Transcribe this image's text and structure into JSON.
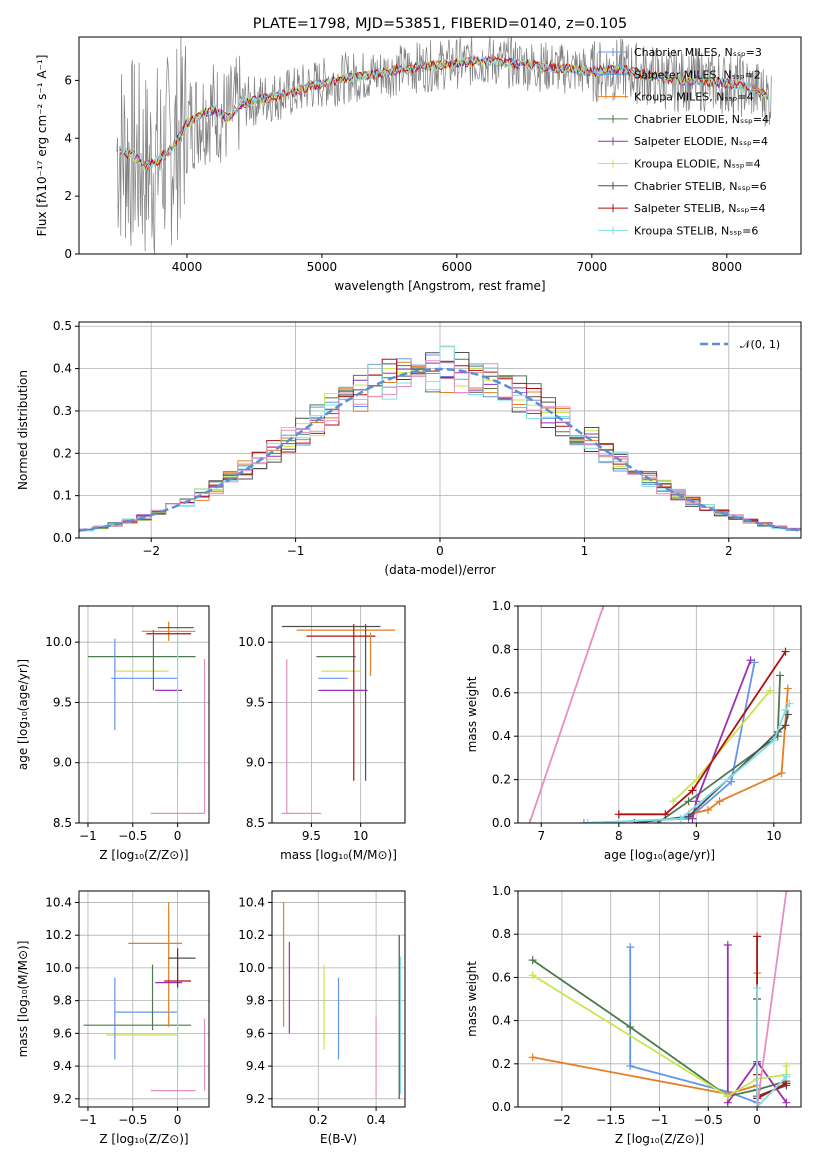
{
  "title": "PLATE=1798, MJD=53851, FIBERID=0140, z=0.105",
  "colors": {
    "chabrier_miles": "#6495ed",
    "salpeter_miles": "#4f8fe6",
    "kroupa_miles": "#e67e22",
    "chabrier_elodie": "#4d7a4d",
    "salpeter_elodie": "#9b30b0",
    "kroupa_elodie": "#c8e650",
    "chabrier_stelib": "#505050",
    "salpeter_stelib": "#b01010",
    "kroupa_stelib": "#80dfe6",
    "data_grey": "#808080",
    "pink": "#e68fbf",
    "normal_curve": "#5b8fd6"
  },
  "chart_data": [
    {
      "id": "spectrum",
      "type": "line",
      "xlabel": "wavelength [Angstrom, rest frame]",
      "ylabel": "Flux [fλ10⁻¹⁷ erg cm⁻² s⁻¹ A⁻¹]",
      "xlim": [
        3200,
        8550
      ],
      "ylim": [
        0,
        7.5
      ],
      "xticks": [
        4000,
        5000,
        6000,
        7000,
        8000
      ],
      "yticks": [
        0,
        2,
        4,
        6
      ],
      "legend": [
        "Chabrier MILES, N_SSP=3",
        "Salpeter MILES, N_SSP=2",
        "Kroupa MILES, N_SSP=4",
        "Chabrier ELODIE, N_SSP=4",
        "Salpeter ELODIE, N_SSP=4",
        "Kroupa ELODIE, N_SSP=4",
        "Chabrier STELIB, N_SSP=6",
        "Salpeter STELIB, N_SSP=4",
        "Kroupa STELIB, N_SSP=6"
      ],
      "model_x": [
        3500,
        3600,
        3700,
        3800,
        3900,
        4000,
        4100,
        4200,
        4300,
        4400,
        4500,
        4600,
        4700,
        4800,
        4900,
        5000,
        5200,
        5400,
        5600,
        5800,
        6000,
        6200,
        6400,
        6600,
        6800,
        7000,
        7200,
        7400,
        7600,
        7800,
        8000,
        8200,
        8320
      ],
      "model_y": [
        3.6,
        3.4,
        3.0,
        3.3,
        3.7,
        4.5,
        4.8,
        5.0,
        4.7,
        5.2,
        5.3,
        5.4,
        5.5,
        5.6,
        5.8,
        5.9,
        6.1,
        6.2,
        6.4,
        6.5,
        6.6,
        6.7,
        6.6,
        6.5,
        6.4,
        6.3,
        6.4,
        6.2,
        6.0,
        6.0,
        5.9,
        5.7,
        5.4
      ]
    },
    {
      "id": "residuals",
      "type": "line",
      "xlabel": "(data-model)/error",
      "ylabel": "Normed distribution",
      "xlim": [
        -2.5,
        2.5
      ],
      "ylim": [
        0,
        0.51
      ],
      "xticks": [
        -2,
        -1,
        0,
        1,
        2
      ],
      "yticks": [
        0.0,
        0.1,
        0.2,
        0.3,
        0.4,
        0.5
      ],
      "legend": [
        "𝒩(0, 1)"
      ],
      "normal": {
        "mean": 0,
        "sigma": 1
      }
    },
    {
      "id": "age_vs_Z",
      "type": "scatter",
      "xlabel": "Z [log₁₀(Z/Z⊙)]",
      "ylabel": "age  [log₁₀(age/yr)]",
      "xlim": [
        -1.1,
        0.35
      ],
      "ylim": [
        8.5,
        10.3
      ],
      "xticks": [
        -1.0,
        -0.5,
        0.0
      ],
      "yticks": [
        8.5,
        9.0,
        9.5,
        10.0
      ],
      "points": [
        {
          "x": -0.4,
          "xerr": 0.6,
          "y": 9.88,
          "yerr": 0.0,
          "c": "chabrier_elodie"
        },
        {
          "x": -0.4,
          "xerr": 0.3,
          "y": 9.76,
          "yerr": 0.0,
          "c": "kroupa_elodie"
        },
        {
          "x": -0.37,
          "xerr": 0.37,
          "y": 9.7,
          "yerr": 0.0,
          "c": "chabrier_miles"
        },
        {
          "x": -0.7,
          "xerr": 0.0,
          "y": 9.65,
          "yerr": 0.38,
          "c": "chabrier_miles"
        },
        {
          "x": -0.1,
          "xerr": 0.15,
          "y": 9.6,
          "yerr": 0.0,
          "c": "salpeter_elodie"
        },
        {
          "x": -0.1,
          "xerr": 0.3,
          "y": 10.09,
          "yerr": 0.08,
          "c": "kroupa_miles"
        },
        {
          "x": -0.02,
          "xerr": 0.2,
          "y": 10.12,
          "yerr": 0.0,
          "c": "chabrier_stelib"
        },
        {
          "x": 0.0,
          "xerr": 0.0,
          "y": 9.5,
          "yerr": 0.6,
          "c": "kroupa_stelib"
        },
        {
          "x": -0.1,
          "xerr": 0.25,
          "y": 10.07,
          "yerr": 0.0,
          "c": "salpeter_stelib"
        },
        {
          "x": 0.0,
          "xerr": 0.3,
          "y": 8.58,
          "yerr": 0.0,
          "c": "pink"
        },
        {
          "x": 0.3,
          "xerr": 0.0,
          "y": 9.22,
          "yerr": 0.64,
          "c": "pink"
        },
        {
          "x": -0.27,
          "xerr": 0.0,
          "y": 9.85,
          "yerr": 0.25,
          "c": "chabrier_elodie"
        }
      ]
    },
    {
      "id": "age_vs_mass",
      "type": "scatter",
      "xlabel": "mass [log₁₀(M/M⊙)]",
      "ylabel": "",
      "xlim": [
        9.1,
        10.45
      ],
      "ylim": [
        8.5,
        10.3
      ],
      "xticks": [
        9.5,
        10.0
      ],
      "yticks": [
        8.5,
        9.0,
        9.5,
        10.0
      ],
      "points": [
        {
          "x": 9.7,
          "xerr": 0.5,
          "y": 10.13,
          "yerr": 0.0,
          "c": "chabrier_stelib"
        },
        {
          "x": 9.85,
          "xerr": 0.5,
          "y": 10.1,
          "yerr": 0.0,
          "c": "kroupa_miles"
        },
        {
          "x": 9.8,
          "xerr": 0.35,
          "y": 10.05,
          "yerr": 0.0,
          "c": "salpeter_stelib"
        },
        {
          "x": 9.75,
          "xerr": 0.2,
          "y": 9.88,
          "yerr": 0.0,
          "c": "chabrier_elodie"
        },
        {
          "x": 9.8,
          "xerr": 0.2,
          "y": 9.76,
          "yerr": 0.0,
          "c": "kroupa_elodie"
        },
        {
          "x": 9.72,
          "xerr": 0.15,
          "y": 9.7,
          "yerr": 0.0,
          "c": "chabrier_miles"
        },
        {
          "x": 9.82,
          "xerr": 0.25,
          "y": 9.6,
          "yerr": 0.0,
          "c": "salpeter_elodie"
        },
        {
          "x": 9.4,
          "xerr": 0.2,
          "y": 8.58,
          "yerr": 0.0,
          "c": "pink"
        },
        {
          "x": 9.25,
          "xerr": 0.0,
          "y": 9.22,
          "yerr": 0.64,
          "c": "pink"
        },
        {
          "x": 9.93,
          "xerr": 0.0,
          "y": 9.5,
          "yerr": 0.65,
          "c": "salpeter_stelib"
        },
        {
          "x": 10.05,
          "xerr": 0.0,
          "y": 9.5,
          "yerr": 0.65,
          "c": "chabrier_stelib"
        },
        {
          "x": 10.1,
          "xerr": 0.0,
          "y": 9.9,
          "yerr": 0.18,
          "c": "kroupa_miles"
        }
      ]
    },
    {
      "id": "mass_weight_vs_age",
      "type": "line",
      "xlabel": "age  [log₁₀(age/yr)]",
      "ylabel": "mass weight",
      "xlim": [
        6.7,
        10.35
      ],
      "ylim": [
        0,
        1.0
      ],
      "xticks": [
        7,
        8,
        9,
        10
      ],
      "yticks": [
        0.0,
        0.2,
        0.4,
        0.6,
        0.8,
        1.0
      ],
      "series": [
        {
          "c": "pink",
          "x": [
            6.85,
            7.8
          ],
          "y": [
            0.0,
            1.0
          ]
        },
        {
          "c": "chabrier_miles",
          "x": [
            7.55,
            8.9,
            9.45,
            9.75
          ],
          "y": [
            0.0,
            0.02,
            0.19,
            0.74
          ]
        },
        {
          "c": "kroupa_miles",
          "x": [
            8.9,
            9.15,
            9.3,
            10.1,
            10.18
          ],
          "y": [
            0.04,
            0.06,
            0.1,
            0.23,
            0.62
          ]
        },
        {
          "c": "chabrier_elodie",
          "x": [
            8.5,
            8.9,
            10.05,
            10.08
          ],
          "y": [
            0.0,
            0.1,
            0.4,
            0.68
          ]
        },
        {
          "c": "salpeter_elodie",
          "x": [
            8.95,
            9.0,
            9.7
          ],
          "y": [
            0.02,
            0.1,
            0.75
          ]
        },
        {
          "c": "kroupa_elodie",
          "x": [
            8.7,
            9.0,
            9.95
          ],
          "y": [
            0.1,
            0.2,
            0.61
          ]
        },
        {
          "c": "chabrier_stelib",
          "x": [
            8.2,
            8.9,
            10.05,
            10.15,
            10.18
          ],
          "y": [
            0.0,
            0.03,
            0.42,
            0.45,
            0.5
          ]
        },
        {
          "c": "salpeter_stelib",
          "x": [
            8.0,
            8.6,
            8.95,
            10.15
          ],
          "y": [
            0.04,
            0.04,
            0.15,
            0.79
          ]
        },
        {
          "c": "kroupa_stelib",
          "x": [
            7.6,
            8.8,
            10.0,
            10.15,
            10.2
          ],
          "y": [
            0.0,
            0.02,
            0.38,
            0.52,
            0.55
          ]
        }
      ]
    },
    {
      "id": "mass_vs_Z",
      "type": "scatter",
      "xlabel": "Z [log₁₀(Z/Z⊙)]",
      "ylabel": "mass [log₁₀(M/M⊙)]",
      "xlim": [
        -1.1,
        0.35
      ],
      "ylim": [
        9.15,
        10.47
      ],
      "xticks": [
        -1.0,
        -0.5,
        0.0
      ],
      "yticks": [
        9.2,
        9.4,
        9.6,
        9.8,
        10.0,
        10.2,
        10.4
      ],
      "points": [
        {
          "x": -0.45,
          "xerr": 0.6,
          "y": 9.65,
          "yerr": 0.0,
          "c": "chabrier_elodie"
        },
        {
          "x": -0.4,
          "xerr": 0.4,
          "y": 9.59,
          "yerr": 0.0,
          "c": "kroupa_elodie"
        },
        {
          "x": -0.35,
          "xerr": 0.35,
          "y": 9.73,
          "yerr": 0.0,
          "c": "chabrier_miles"
        },
        {
          "x": -0.7,
          "xerr": 0.0,
          "y": 9.69,
          "yerr": 0.25,
          "c": "chabrier_miles"
        },
        {
          "x": -0.25,
          "xerr": 0.3,
          "y": 10.15,
          "yerr": 0.0,
          "c": "kroupa_miles"
        },
        {
          "x": -0.1,
          "xerr": 0.0,
          "y": 10.02,
          "yerr": 0.38,
          "c": "kroupa_miles"
        },
        {
          "x": -0.1,
          "xerr": 0.15,
          "y": 9.91,
          "yerr": 0.0,
          "c": "salpeter_elodie"
        },
        {
          "x": 0.0,
          "xerr": 0.15,
          "y": 9.92,
          "yerr": 0.0,
          "c": "salpeter_stelib"
        },
        {
          "x": 0.0,
          "xerr": 0.0,
          "y": 9.7,
          "yerr": 0.38,
          "c": "kroupa_stelib"
        },
        {
          "x": 0.05,
          "xerr": 0.15,
          "y": 10.06,
          "yerr": 0.0,
          "c": "chabrier_stelib"
        },
        {
          "x": 0.0,
          "xerr": 0.0,
          "y": 10.0,
          "yerr": 0.12,
          "c": "salpeter_stelib"
        },
        {
          "x": -0.05,
          "xerr": 0.25,
          "y": 9.25,
          "yerr": 0.0,
          "c": "pink"
        },
        {
          "x": 0.3,
          "xerr": 0.0,
          "y": 9.47,
          "yerr": 0.22,
          "c": "pink"
        },
        {
          "x": -0.28,
          "xerr": 0.0,
          "y": 9.82,
          "yerr": 0.2,
          "c": "chabrier_elodie"
        }
      ]
    },
    {
      "id": "mass_vs_ebv",
      "type": "scatter",
      "xlabel": "E(B-V)",
      "ylabel": "",
      "xlim": [
        0.04,
        0.5
      ],
      "ylim": [
        9.15,
        10.47
      ],
      "xticks": [
        0.2,
        0.4
      ],
      "yticks": [
        9.2,
        9.4,
        9.6,
        9.8,
        10.0,
        10.2,
        10.4
      ],
      "points": [
        {
          "x": 0.08,
          "xerr": 0.0,
          "y": 10.02,
          "yerr": 0.38,
          "c": "kroupa_miles"
        },
        {
          "x": 0.1,
          "xerr": 0.0,
          "y": 9.88,
          "yerr": 0.28,
          "c": "salpeter_elodie"
        },
        {
          "x": 0.22,
          "xerr": 0.0,
          "y": 9.76,
          "yerr": 0.26,
          "c": "kroupa_elodie"
        },
        {
          "x": 0.27,
          "xerr": 0.0,
          "y": 9.69,
          "yerr": 0.25,
          "c": "chabrier_miles"
        },
        {
          "x": 0.4,
          "xerr": 0.0,
          "y": 9.45,
          "yerr": 0.25,
          "c": "pink"
        },
        {
          "x": 0.48,
          "xerr": 0.0,
          "y": 9.7,
          "yerr": 0.5,
          "c": "chabrier_stelib"
        },
        {
          "x": 0.485,
          "xerr": 0.0,
          "y": 9.65,
          "yerr": 0.42,
          "c": "kroupa_stelib"
        }
      ]
    },
    {
      "id": "mass_weight_vs_Z",
      "type": "line",
      "xlabel": "Z [log₁₀(Z/Z⊙)]",
      "ylabel": "mass weight",
      "xlim": [
        -2.45,
        0.45
      ],
      "ylim": [
        0,
        1.0
      ],
      "xticks": [
        -2.0,
        -1.5,
        -1.0,
        -0.5,
        0.0
      ],
      "yticks": [
        0.0,
        0.2,
        0.4,
        0.6,
        0.8,
        1.0
      ],
      "series": [
        {
          "c": "chabrier_miles",
          "x": [
            -1.3,
            -1.3,
            -0.3,
            0.0
          ],
          "y": [
            0.74,
            0.19,
            0.07,
            0.02
          ]
        },
        {
          "c": "kroupa_miles",
          "x": [
            -2.3,
            -0.3,
            0.0,
            0.0
          ],
          "y": [
            0.23,
            0.06,
            0.1,
            0.62
          ]
        },
        {
          "c": "chabrier_elodie",
          "x": [
            -2.3,
            -1.3,
            -0.3,
            0.0,
            0.3
          ],
          "y": [
            0.68,
            0.37,
            0.05,
            0.08,
            0.12
          ]
        },
        {
          "c": "salpeter_elodie",
          "x": [
            -0.3,
            -0.3,
            0.0,
            0.3
          ],
          "y": [
            0.75,
            0.02,
            0.21,
            0.02
          ]
        },
        {
          "c": "kroupa_elodie",
          "x": [
            -2.3,
            -0.3,
            0.0,
            0.3,
            0.3
          ],
          "y": [
            0.61,
            0.05,
            0.13,
            0.15,
            0.19
          ]
        },
        {
          "c": "chabrier_stelib",
          "x": [
            0.0,
            0.0,
            0.0,
            0.3
          ],
          "y": [
            0.5,
            0.2,
            0.05,
            0.1
          ]
        },
        {
          "c": "salpeter_stelib",
          "x": [
            0.0,
            0.0,
            0.0,
            0.3
          ],
          "y": [
            0.79,
            0.15,
            0.04,
            0.11
          ]
        },
        {
          "c": "kroupa_stelib",
          "x": [
            0.0,
            0.0,
            0.3
          ],
          "y": [
            0.55,
            0.0,
            0.14
          ]
        },
        {
          "c": "pink",
          "x": [
            0.0,
            0.3
          ],
          "y": [
            0.0,
            1.0
          ]
        }
      ]
    }
  ]
}
